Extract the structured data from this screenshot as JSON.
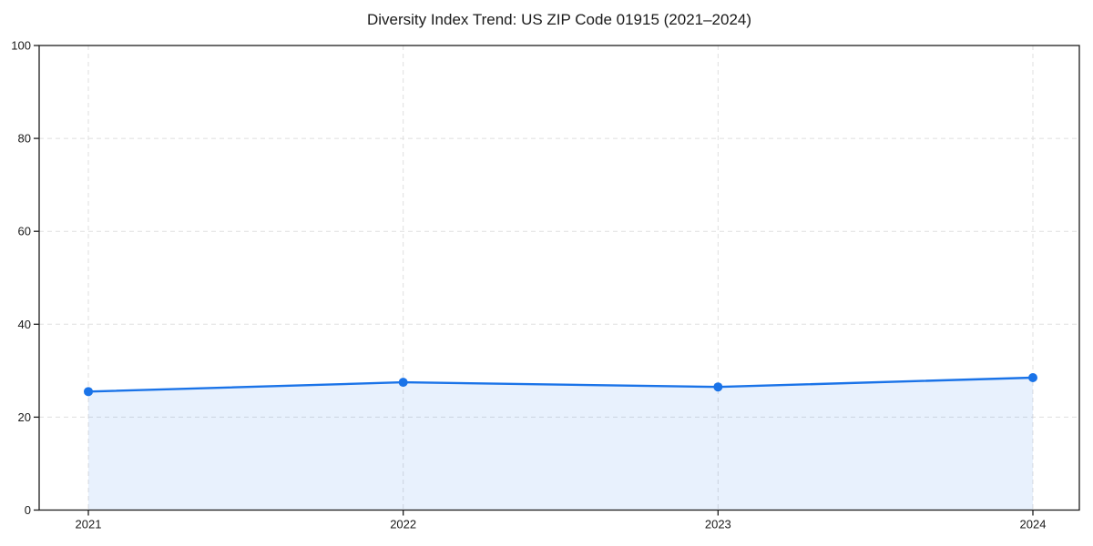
{
  "chart_data": {
    "type": "line",
    "title": "Diversity Index Trend: US ZIP Code 01915 (2021–2024)",
    "x": [
      "2021",
      "2022",
      "2023",
      "2024"
    ],
    "values": [
      25.5,
      27.5,
      26.5,
      28.5
    ],
    "xlabel": "",
    "ylabel": "",
    "ylim": [
      0,
      100
    ],
    "yticks": [
      0,
      20,
      40,
      60,
      80,
      100
    ],
    "grid": true,
    "grid_style": "dashed",
    "legend": false,
    "legend_position": "none",
    "line_color": "#1a73e8",
    "fill_color": "rgba(26,115,232,0.10)",
    "marker": "circle",
    "grid_color": "#dfdfdf",
    "axis_color": "#1c1c1c"
  }
}
